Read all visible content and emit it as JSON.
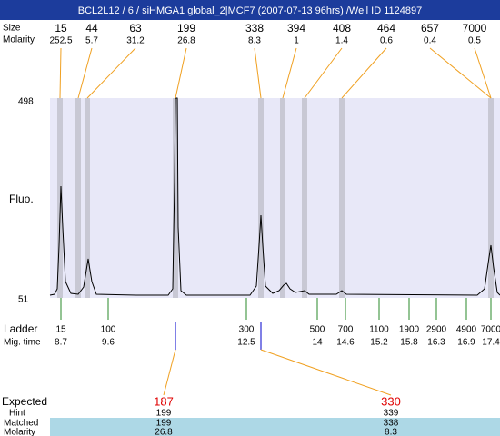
{
  "title": "BCL2L12 / 6 / siHMGA1 global_2|MCF7 (2007-07-13 96hrs) /Well ID 1124897",
  "peaks": {
    "size_label": "Size",
    "molarity_label": "Molarity",
    "sizes": [
      "15",
      "44",
      "63",
      "199",
      "338",
      "394",
      "408",
      "464",
      "657",
      "7000"
    ],
    "molarities": [
      "252.5",
      "5.7",
      "31.2",
      "26.8",
      "8.3",
      "1",
      "1.4",
      "0.6",
      "0.4",
      "0.5"
    ]
  },
  "axis": {
    "top_label": "498",
    "bottom_label": "51",
    "title": "Fluo."
  },
  "ladder": {
    "label": "Ladder",
    "time_label": "Mig. time",
    "sizes": [
      "15",
      "100",
      "300",
      "500",
      "700",
      "1100",
      "1900",
      "2900",
      "4900",
      "7000"
    ],
    "times": [
      "8.7",
      "9.6",
      "12.5",
      "14",
      "14.6",
      "15.2",
      "15.8",
      "16.3",
      "16.9",
      "17.4"
    ]
  },
  "expected": {
    "label": "Expected",
    "hint_label": "Hint",
    "matched_label": "Matched",
    "molarity_label": "Molarity",
    "values": [
      "187",
      "330"
    ],
    "hints": [
      "199",
      "339"
    ],
    "matched": [
      "199",
      "338"
    ],
    "molarities": [
      "26.8",
      "8.3"
    ]
  }
}
